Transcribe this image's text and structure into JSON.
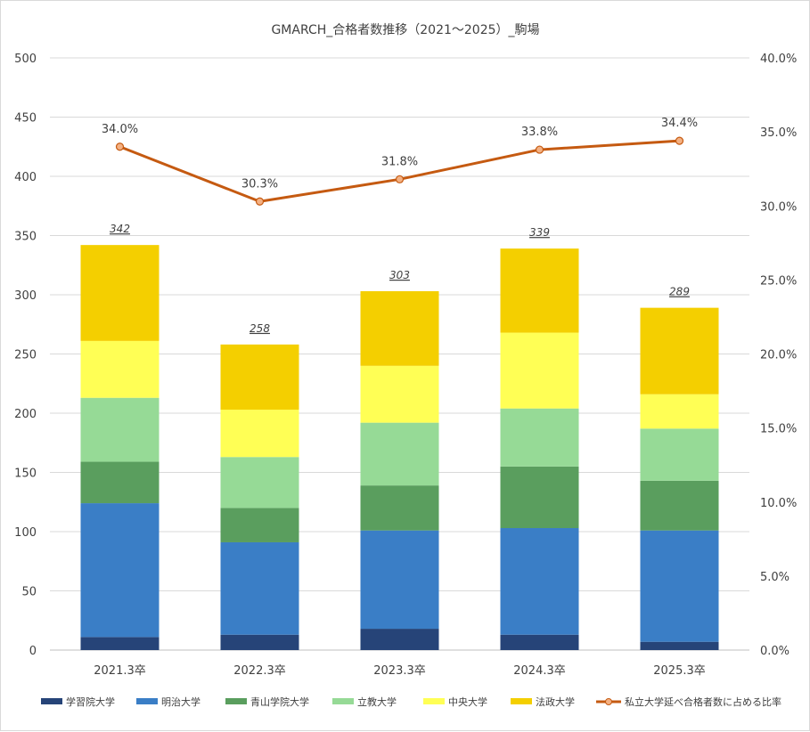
{
  "chart_data": {
    "type": "bar",
    "stacked": true,
    "title": "GMARCH_合格者数推移（2021～2025）_駒場",
    "categories": [
      "2021.3卒",
      "2022.3卒",
      "2023.3卒",
      "2024.3卒",
      "2025.3卒"
    ],
    "series": [
      {
        "name": "学習院大学",
        "color": "#264478",
        "values": [
          11,
          13,
          18,
          13,
          7
        ]
      },
      {
        "name": "明治大学",
        "color": "#3a7ec6",
        "values": [
          113,
          78,
          83,
          90,
          94
        ]
      },
      {
        "name": "青山学院大学",
        "color": "#5a9e5e",
        "values": [
          35,
          29,
          38,
          52,
          42
        ]
      },
      {
        "name": "立教大学",
        "color": "#96da96",
        "values": [
          54,
          43,
          53,
          49,
          44
        ]
      },
      {
        "name": "中央大学",
        "color": "#ffff55",
        "values": [
          48,
          40,
          48,
          64,
          29
        ]
      },
      {
        "name": "法政大学",
        "color": "#f4cf00",
        "values": [
          81,
          55,
          63,
          71,
          73
        ]
      }
    ],
    "totals": [
      "342",
      "258",
      "303",
      "339",
      "289"
    ],
    "line_series": {
      "name": "私立大学延べ合格者数に占める比率",
      "color": "#c55a11",
      "marker_fill": "#f4b183",
      "values": [
        34.0,
        30.3,
        31.8,
        33.8,
        34.4
      ],
      "labels": [
        "34.0%",
        "30.3%",
        "31.8%",
        "33.8%",
        "34.4%"
      ]
    },
    "y_left": {
      "min": 0,
      "max": 500,
      "ticks": [
        "0",
        "50",
        "100",
        "150",
        "200",
        "250",
        "300",
        "350",
        "400",
        "450",
        "500"
      ]
    },
    "y_right": {
      "min": 0,
      "max": 40,
      "ticks": [
        "0.0%",
        "5.0%",
        "10.0%",
        "15.0%",
        "20.0%",
        "25.0%",
        "30.0%",
        "35.0%",
        "40.0%"
      ]
    },
    "grid": true,
    "legend_position": "bottom"
  }
}
